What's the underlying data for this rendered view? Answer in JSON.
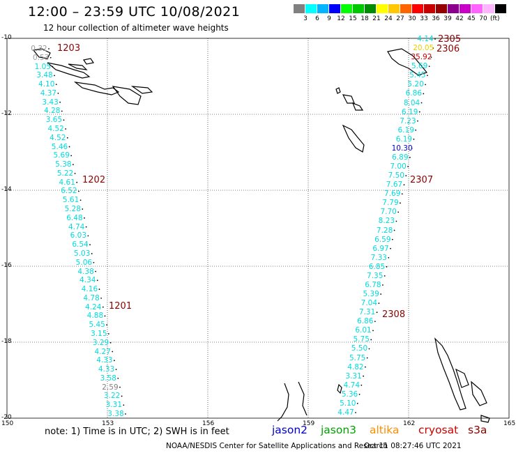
{
  "header": {
    "title": "12:00 – 23:59 UTC 10/08/2021",
    "subtitle": "12 hour collection of altimeter wave heights"
  },
  "legend": {
    "unit": "(ft)",
    "colors": [
      "#808080",
      "#00ffff",
      "#00b4ff",
      "#0000ff",
      "#00ff00",
      "#00c800",
      "#008c00",
      "#ffff00",
      "#ffc800",
      "#ff6400",
      "#ff0000",
      "#c80000",
      "#960000",
      "#8b008b",
      "#c800c8",
      "#ff64ff",
      "#ffb4ff",
      "#000000"
    ],
    "labels": [
      "3",
      "6",
      "9",
      "12",
      "15",
      "18",
      "21",
      "24",
      "27",
      "30",
      "33",
      "36",
      "39",
      "42",
      "45",
      "70"
    ]
  },
  "map": {
    "lat_labels": [
      "-10",
      "-12",
      "-14",
      "-16",
      "-18",
      "-20"
    ],
    "lon_labels": [
      "150",
      "153",
      "156",
      "159",
      "162",
      "165"
    ],
    "passes": [
      {
        "id": "1203",
        "color": "#8b0000"
      },
      {
        "id": "1202",
        "color": "#8b0000"
      },
      {
        "id": "1201",
        "color": "#8b0000"
      },
      {
        "id": "2305",
        "color": "#8b0000"
      },
      {
        "id": "2306",
        "color": "#8b0000"
      },
      {
        "id": "2307",
        "color": "#8b0000"
      },
      {
        "id": "2308",
        "color": "#8b0000"
      }
    ],
    "tracks": {
      "west": [
        {
          "val": "0.32",
          "color": "#999999"
        },
        {
          "val": "0.53",
          "color": "#999999"
        },
        {
          "val": "1.05",
          "color": "#00dddd"
        },
        {
          "val": "3.48",
          "color": "#00dddd"
        },
        {
          "val": "4.10",
          "color": "#00dddd"
        },
        {
          "val": "4.37",
          "color": "#00dddd"
        },
        {
          "val": "3.43",
          "color": "#00dddd"
        },
        {
          "val": "4.28",
          "color": "#00dddd"
        },
        {
          "val": "3.65",
          "color": "#00dddd"
        },
        {
          "val": "4.52",
          "color": "#00dddd"
        },
        {
          "val": "4.52",
          "color": "#00dddd"
        },
        {
          "val": "5.46",
          "color": "#00dddd"
        },
        {
          "val": "5.69",
          "color": "#00dddd"
        },
        {
          "val": "5.38",
          "color": "#00dddd"
        },
        {
          "val": "5.22",
          "color": "#00dddd"
        },
        {
          "val": "4.61",
          "color": "#00dddd"
        },
        {
          "val": "6.52",
          "color": "#00dddd"
        },
        {
          "val": "5.61",
          "color": "#00dddd"
        },
        {
          "val": "5.28",
          "color": "#00dddd"
        },
        {
          "val": "6.48",
          "color": "#00dddd"
        },
        {
          "val": "4.74",
          "color": "#00dddd"
        },
        {
          "val": "6.03",
          "color": "#00dddd"
        },
        {
          "val": "6.54",
          "color": "#00dddd"
        },
        {
          "val": "5.03",
          "color": "#00dddd"
        },
        {
          "val": "5.06",
          "color": "#00dddd"
        },
        {
          "val": "4.38",
          "color": "#00dddd"
        },
        {
          "val": "4.34",
          "color": "#00dddd"
        },
        {
          "val": "4.16",
          "color": "#00dddd"
        },
        {
          "val": "4.78",
          "color": "#00dddd"
        },
        {
          "val": "4.24",
          "color": "#00dddd"
        },
        {
          "val": "4.88",
          "color": "#00dddd"
        },
        {
          "val": "5.45",
          "color": "#00dddd"
        },
        {
          "val": "3.15",
          "color": "#00dddd"
        },
        {
          "val": "3.29",
          "color": "#00dddd"
        },
        {
          "val": "4.27",
          "color": "#00dddd"
        },
        {
          "val": "4.33",
          "color": "#00dddd"
        },
        {
          "val": "4.33",
          "color": "#00dddd"
        },
        {
          "val": "3.58",
          "color": "#00dddd"
        },
        {
          "val": "2.59",
          "color": "#808080"
        },
        {
          "val": "3.22",
          "color": "#00dddd"
        },
        {
          "val": "3.31",
          "color": "#00dddd"
        },
        {
          "val": "3.38",
          "color": "#00dddd"
        }
      ],
      "east": [
        {
          "val": "4.14",
          "color": "#00dddd"
        },
        {
          "val": "20.05",
          "color": "#e8d000"
        },
        {
          "val": "35.92",
          "color": "#cc0000"
        },
        {
          "val": "5.69",
          "color": "#00dddd"
        },
        {
          "val": "5.45",
          "color": "#00dddd"
        },
        {
          "val": "5.20",
          "color": "#00dddd"
        },
        {
          "val": "6.86",
          "color": "#00dddd"
        },
        {
          "val": "8.04",
          "color": "#00dddd"
        },
        {
          "val": "6.19",
          "color": "#00dddd"
        },
        {
          "val": "7.23",
          "color": "#00dddd"
        },
        {
          "val": "6.19",
          "color": "#00dddd"
        },
        {
          "val": "6.19",
          "color": "#00dddd"
        },
        {
          "val": "10.30",
          "color": "#0000cc"
        },
        {
          "val": "6.89",
          "color": "#00dddd"
        },
        {
          "val": "7.00",
          "color": "#00dddd"
        },
        {
          "val": "7.50",
          "color": "#00dddd"
        },
        {
          "val": "7.67",
          "color": "#00dddd"
        },
        {
          "val": "7.69",
          "color": "#00dddd"
        },
        {
          "val": "7.79",
          "color": "#00dddd"
        },
        {
          "val": "7.70",
          "color": "#00dddd"
        },
        {
          "val": "8.23",
          "color": "#00dddd"
        },
        {
          "val": "7.28",
          "color": "#00dddd"
        },
        {
          "val": "6.59",
          "color": "#00dddd"
        },
        {
          "val": "6.97",
          "color": "#00dddd"
        },
        {
          "val": "7.33",
          "color": "#00dddd"
        },
        {
          "val": "6.85",
          "color": "#00dddd"
        },
        {
          "val": "7.35",
          "color": "#00dddd"
        },
        {
          "val": "6.78",
          "color": "#00dddd"
        },
        {
          "val": "5.39",
          "color": "#00dddd"
        },
        {
          "val": "7.04",
          "color": "#00dddd"
        },
        {
          "val": "7.31",
          "color": "#00dddd"
        },
        {
          "val": "6.86",
          "color": "#00dddd"
        },
        {
          "val": "6.01",
          "color": "#00dddd"
        },
        {
          "val": "5.75",
          "color": "#00dddd"
        },
        {
          "val": "5.50",
          "color": "#00dddd"
        },
        {
          "val": "5.75",
          "color": "#00dddd"
        },
        {
          "val": "4.82",
          "color": "#00dddd"
        },
        {
          "val": "3.31",
          "color": "#00dddd"
        },
        {
          "val": "4.74",
          "color": "#00dddd"
        },
        {
          "val": "5.36",
          "color": "#00dddd"
        },
        {
          "val": "5.10",
          "color": "#00dddd"
        },
        {
          "val": "4.47",
          "color": "#00dddd"
        }
      ]
    }
  },
  "footer": {
    "note": "note: 1) Time is in UTC; 2) SWH is in feet",
    "satellites": [
      {
        "name": "jason2",
        "color": "#0000cc"
      },
      {
        "name": "jason3",
        "color": "#00a000"
      },
      {
        "name": "altika",
        "color": "#ff8c00"
      },
      {
        "name": "cryosat",
        "color": "#cc0000"
      },
      {
        "name": "s3a",
        "color": "#8b0000"
      }
    ],
    "credit": "NOAA/NESDIS Center for Satellite Applications and Research",
    "timestamp": "Oct 11 08:27:46 UTC 2021"
  }
}
